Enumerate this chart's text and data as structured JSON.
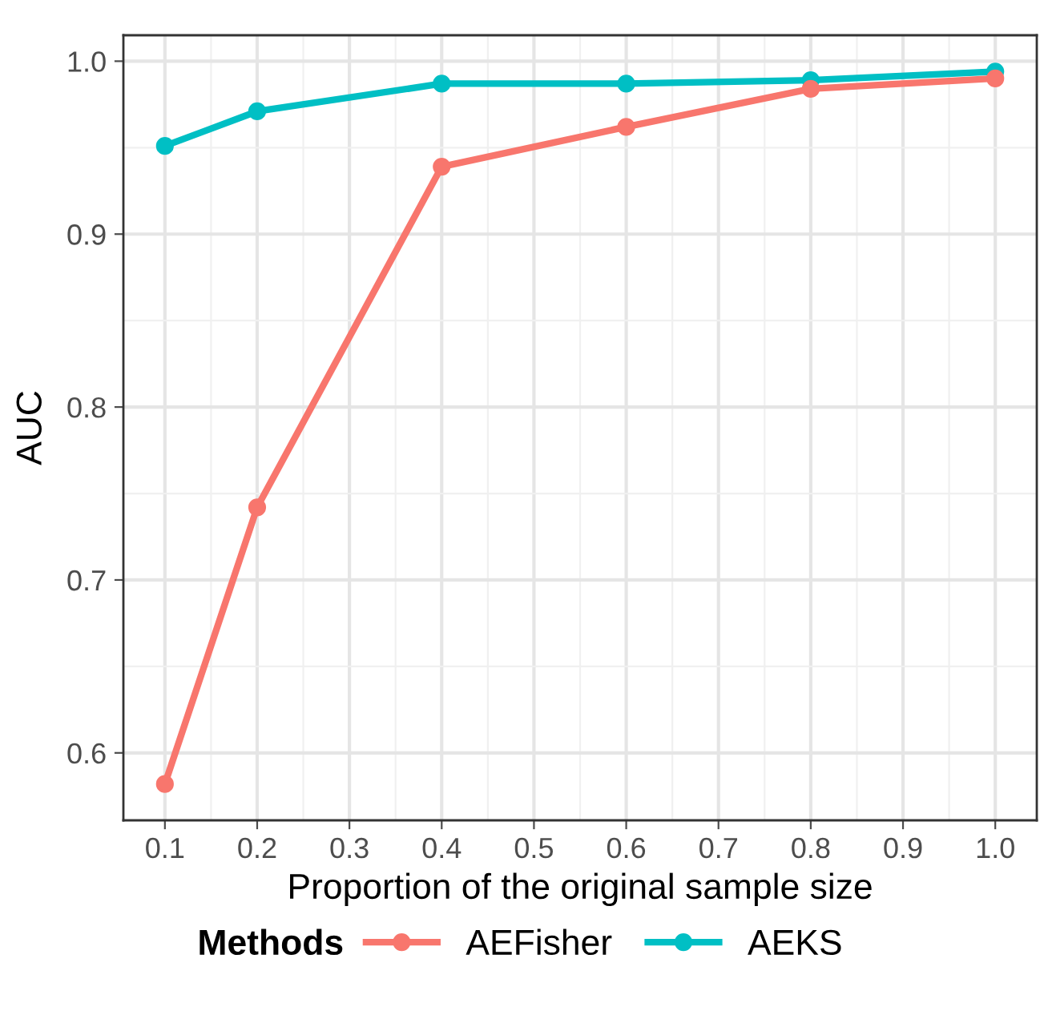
{
  "chart_data": {
    "type": "line",
    "xlabel": "Proportion of the original sample size",
    "ylabel": "AUC",
    "legend_title": "Methods",
    "x": [
      0.1,
      0.2,
      0.4,
      0.6,
      0.8,
      1.0
    ],
    "series": [
      {
        "name": "AEFisher",
        "color": "#f8766d",
        "values": [
          0.582,
          0.742,
          0.939,
          0.962,
          0.984,
          0.99
        ]
      },
      {
        "name": "AEKS",
        "color": "#00bfc4",
        "values": [
          0.951,
          0.971,
          0.987,
          0.987,
          0.989,
          0.994
        ]
      }
    ],
    "xlim": [
      0.055,
      1.045
    ],
    "ylim": [
      0.561,
      1.015
    ],
    "xticks": [
      {
        "value": 0.1,
        "label": "0.1"
      },
      {
        "value": 0.2,
        "label": "0.2"
      },
      {
        "value": 0.3,
        "label": "0.3"
      },
      {
        "value": 0.4,
        "label": "0.4"
      },
      {
        "value": 0.5,
        "label": "0.5"
      },
      {
        "value": 0.6,
        "label": "0.6"
      },
      {
        "value": 0.7,
        "label": "0.7"
      },
      {
        "value": 0.8,
        "label": "0.8"
      },
      {
        "value": 0.9,
        "label": "0.9"
      },
      {
        "value": 1.0,
        "label": "1.0"
      }
    ],
    "yticks": [
      {
        "value": 0.6,
        "label": "0.6"
      },
      {
        "value": 0.7,
        "label": "0.7"
      },
      {
        "value": 0.8,
        "label": "0.8"
      },
      {
        "value": 0.9,
        "label": "0.9"
      },
      {
        "value": 1.0,
        "label": "1.0"
      }
    ],
    "grid": true,
    "legend": "bottom",
    "marker": "circle",
    "line_style": "solid"
  }
}
